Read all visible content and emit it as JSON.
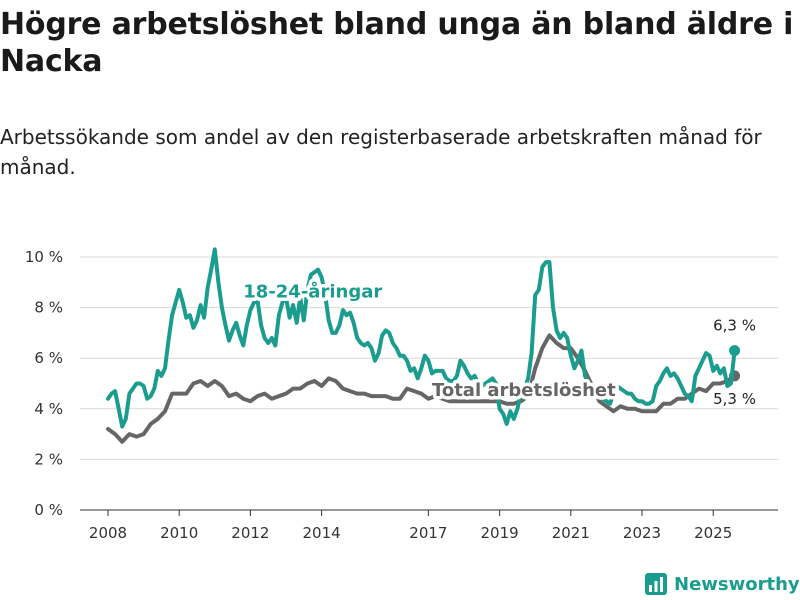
{
  "title": "Högre arbetslöshet bland unga än bland äldre i Nacka",
  "subtitle": "Arbetssökande som andel av den registerbaserade arbetskraften månad för månad.",
  "brand": {
    "name": "Newsworthy",
    "icon": "bar-chart-logo-icon",
    "color": "#1a9d8f"
  },
  "chart_data": {
    "type": "line",
    "title": "Högre arbetslöshet bland unga än bland äldre i Nacka",
    "subtitle": "Arbetssökande som andel av den registerbaserade arbetskraften månad för månad.",
    "xlabel": "",
    "ylabel": "",
    "xlim": [
      2007.6,
      2026.0
    ],
    "ylim": [
      0,
      10
    ],
    "x_ticks": [
      2008,
      2010,
      2012,
      2014,
      2017,
      2019,
      2021,
      2023,
      2025
    ],
    "x_tick_labels": [
      "2008",
      "2010",
      "2012",
      "2014",
      "2017",
      "2019",
      "2021",
      "2023",
      "2025"
    ],
    "y_ticks": [
      0,
      2,
      4,
      6,
      8,
      10
    ],
    "y_tick_labels": [
      "0 %",
      "2 %",
      "4 %",
      "6 %",
      "8 %",
      "10 %"
    ],
    "grid": true,
    "series": [
      {
        "name": "18-24-åringar",
        "color": "#1a9d8f",
        "end_label": "6,3 %",
        "points": [
          [
            2008.0,
            4.4
          ],
          [
            2008.1,
            4.6
          ],
          [
            2008.2,
            4.7
          ],
          [
            2008.3,
            4.0
          ],
          [
            2008.4,
            3.3
          ],
          [
            2008.5,
            3.6
          ],
          [
            2008.6,
            4.6
          ],
          [
            2008.7,
            4.8
          ],
          [
            2008.8,
            5.0
          ],
          [
            2008.9,
            5.0
          ],
          [
            2009.0,
            4.9
          ],
          [
            2009.1,
            4.4
          ],
          [
            2009.2,
            4.5
          ],
          [
            2009.3,
            4.8
          ],
          [
            2009.4,
            5.5
          ],
          [
            2009.5,
            5.3
          ],
          [
            2009.6,
            5.6
          ],
          [
            2009.7,
            6.7
          ],
          [
            2009.8,
            7.7
          ],
          [
            2009.9,
            8.2
          ],
          [
            2010.0,
            8.7
          ],
          [
            2010.1,
            8.2
          ],
          [
            2010.2,
            7.6
          ],
          [
            2010.3,
            7.7
          ],
          [
            2010.4,
            7.2
          ],
          [
            2010.5,
            7.5
          ],
          [
            2010.6,
            8.1
          ],
          [
            2010.7,
            7.6
          ],
          [
            2010.8,
            8.8
          ],
          [
            2010.9,
            9.5
          ],
          [
            2011.0,
            10.3
          ],
          [
            2011.1,
            9.0
          ],
          [
            2011.2,
            8.0
          ],
          [
            2011.3,
            7.3
          ],
          [
            2011.4,
            6.7
          ],
          [
            2011.5,
            7.1
          ],
          [
            2011.6,
            7.4
          ],
          [
            2011.7,
            6.9
          ],
          [
            2011.8,
            6.5
          ],
          [
            2011.9,
            7.3
          ],
          [
            2012.0,
            7.9
          ],
          [
            2012.1,
            8.2
          ],
          [
            2012.2,
            8.3
          ],
          [
            2012.3,
            7.3
          ],
          [
            2012.4,
            6.8
          ],
          [
            2012.5,
            6.6
          ],
          [
            2012.6,
            6.8
          ],
          [
            2012.7,
            6.5
          ],
          [
            2012.8,
            7.7
          ],
          [
            2012.9,
            8.2
          ],
          [
            2013.0,
            8.4
          ],
          [
            2013.1,
            7.6
          ],
          [
            2013.2,
            8.1
          ],
          [
            2013.3,
            7.4
          ],
          [
            2013.4,
            8.4
          ],
          [
            2013.5,
            7.5
          ],
          [
            2013.6,
            8.7
          ],
          [
            2013.7,
            9.3
          ],
          [
            2013.8,
            9.4
          ],
          [
            2013.9,
            9.5
          ],
          [
            2014.0,
            9.2
          ],
          [
            2014.1,
            8.5
          ],
          [
            2014.2,
            7.5
          ],
          [
            2014.3,
            7.0
          ],
          [
            2014.4,
            7.0
          ],
          [
            2014.5,
            7.3
          ],
          [
            2014.6,
            7.9
          ],
          [
            2014.7,
            7.7
          ],
          [
            2014.8,
            7.8
          ],
          [
            2014.9,
            7.4
          ],
          [
            2015.0,
            6.8
          ],
          [
            2015.1,
            6.6
          ],
          [
            2015.2,
            6.5
          ],
          [
            2015.3,
            6.6
          ],
          [
            2015.4,
            6.4
          ],
          [
            2015.5,
            5.9
          ],
          [
            2015.6,
            6.2
          ],
          [
            2015.7,
            6.9
          ],
          [
            2015.8,
            7.1
          ],
          [
            2015.9,
            7.0
          ],
          [
            2016.0,
            6.6
          ],
          [
            2016.1,
            6.4
          ],
          [
            2016.2,
            6.1
          ],
          [
            2016.3,
            6.1
          ],
          [
            2016.4,
            5.9
          ],
          [
            2016.5,
            5.5
          ],
          [
            2016.6,
            5.6
          ],
          [
            2016.7,
            5.2
          ],
          [
            2016.8,
            5.6
          ],
          [
            2016.9,
            6.1
          ],
          [
            2017.0,
            5.9
          ],
          [
            2017.1,
            5.4
          ],
          [
            2017.2,
            5.5
          ],
          [
            2017.3,
            5.5
          ],
          [
            2017.4,
            5.5
          ],
          [
            2017.5,
            5.2
          ],
          [
            2017.6,
            5.1
          ],
          [
            2017.7,
            5.1
          ],
          [
            2017.8,
            5.3
          ],
          [
            2017.9,
            5.9
          ],
          [
            2018.0,
            5.7
          ],
          [
            2018.1,
            5.4
          ],
          [
            2018.2,
            5.2
          ],
          [
            2018.3,
            5.3
          ],
          [
            2018.4,
            5.0
          ],
          [
            2018.5,
            4.9
          ],
          [
            2018.6,
            5.0
          ],
          [
            2018.7,
            5.1
          ],
          [
            2018.8,
            5.2
          ],
          [
            2018.9,
            5.0
          ],
          [
            2019.0,
            4.0
          ],
          [
            2019.1,
            3.8
          ],
          [
            2019.2,
            3.4
          ],
          [
            2019.3,
            3.9
          ],
          [
            2019.4,
            3.6
          ],
          [
            2019.5,
            4.0
          ],
          [
            2019.6,
            4.6
          ],
          [
            2019.7,
            4.8
          ],
          [
            2019.8,
            5.2
          ],
          [
            2019.9,
            6.2
          ],
          [
            2020.0,
            8.5
          ],
          [
            2020.1,
            8.7
          ],
          [
            2020.2,
            9.6
          ],
          [
            2020.3,
            9.8
          ],
          [
            2020.4,
            9.8
          ],
          [
            2020.5,
            8.0
          ],
          [
            2020.6,
            7.1
          ],
          [
            2020.7,
            6.8
          ],
          [
            2020.8,
            7.0
          ],
          [
            2020.9,
            6.8
          ],
          [
            2021.0,
            6.1
          ],
          [
            2021.1,
            5.6
          ],
          [
            2021.2,
            5.9
          ],
          [
            2021.3,
            6.3
          ],
          [
            2021.4,
            5.3
          ],
          [
            2021.5,
            5.0
          ],
          [
            2021.6,
            4.8
          ],
          [
            2021.7,
            4.7
          ],
          [
            2021.8,
            4.6
          ],
          [
            2021.9,
            4.4
          ],
          [
            2022.0,
            4.3
          ],
          [
            2022.1,
            4.2
          ],
          [
            2022.2,
            4.6
          ],
          [
            2022.3,
            4.9
          ],
          [
            2022.4,
            4.8
          ],
          [
            2022.5,
            4.7
          ],
          [
            2022.6,
            4.6
          ],
          [
            2022.7,
            4.6
          ],
          [
            2022.8,
            4.4
          ],
          [
            2022.9,
            4.3
          ],
          [
            2023.0,
            4.3
          ],
          [
            2023.1,
            4.2
          ],
          [
            2023.2,
            4.2
          ],
          [
            2023.3,
            4.3
          ],
          [
            2023.4,
            4.9
          ],
          [
            2023.5,
            5.1
          ],
          [
            2023.6,
            5.4
          ],
          [
            2023.7,
            5.6
          ],
          [
            2023.8,
            5.3
          ],
          [
            2023.9,
            5.4
          ],
          [
            2024.0,
            5.2
          ],
          [
            2024.1,
            4.9
          ],
          [
            2024.2,
            4.6
          ],
          [
            2024.3,
            4.5
          ],
          [
            2024.4,
            4.3
          ],
          [
            2024.5,
            5.3
          ],
          [
            2024.6,
            5.6
          ],
          [
            2024.7,
            5.9
          ],
          [
            2024.8,
            6.2
          ],
          [
            2024.9,
            6.1
          ],
          [
            2025.0,
            5.5
          ],
          [
            2025.1,
            5.7
          ],
          [
            2025.2,
            5.4
          ],
          [
            2025.3,
            5.6
          ],
          [
            2025.4,
            4.9
          ],
          [
            2025.5,
            5.0
          ],
          [
            2025.6,
            6.3
          ]
        ]
      },
      {
        "name": "Total arbetslöshet",
        "color": "#666666",
        "end_label": "5,3 %",
        "points": [
          [
            2008.0,
            3.2
          ],
          [
            2008.2,
            3.0
          ],
          [
            2008.4,
            2.7
          ],
          [
            2008.6,
            3.0
          ],
          [
            2008.8,
            2.9
          ],
          [
            2009.0,
            3.0
          ],
          [
            2009.2,
            3.4
          ],
          [
            2009.4,
            3.6
          ],
          [
            2009.6,
            3.9
          ],
          [
            2009.8,
            4.6
          ],
          [
            2010.0,
            4.6
          ],
          [
            2010.2,
            4.6
          ],
          [
            2010.4,
            5.0
          ],
          [
            2010.6,
            5.1
          ],
          [
            2010.8,
            4.9
          ],
          [
            2011.0,
            5.1
          ],
          [
            2011.2,
            4.9
          ],
          [
            2011.4,
            4.5
          ],
          [
            2011.6,
            4.6
          ],
          [
            2011.8,
            4.4
          ],
          [
            2012.0,
            4.3
          ],
          [
            2012.2,
            4.5
          ],
          [
            2012.4,
            4.6
          ],
          [
            2012.6,
            4.4
          ],
          [
            2012.8,
            4.5
          ],
          [
            2013.0,
            4.6
          ],
          [
            2013.2,
            4.8
          ],
          [
            2013.4,
            4.8
          ],
          [
            2013.6,
            5.0
          ],
          [
            2013.8,
            5.1
          ],
          [
            2014.0,
            4.9
          ],
          [
            2014.2,
            5.2
          ],
          [
            2014.4,
            5.1
          ],
          [
            2014.6,
            4.8
          ],
          [
            2014.8,
            4.7
          ],
          [
            2015.0,
            4.6
          ],
          [
            2015.2,
            4.6
          ],
          [
            2015.4,
            4.5
          ],
          [
            2015.6,
            4.5
          ],
          [
            2015.8,
            4.5
          ],
          [
            2016.0,
            4.4
          ],
          [
            2016.2,
            4.4
          ],
          [
            2016.4,
            4.8
          ],
          [
            2016.6,
            4.7
          ],
          [
            2016.8,
            4.6
          ],
          [
            2017.0,
            4.4
          ],
          [
            2017.2,
            4.5
          ],
          [
            2017.4,
            4.4
          ],
          [
            2017.6,
            4.3
          ],
          [
            2017.8,
            4.3
          ],
          [
            2018.0,
            4.3
          ],
          [
            2018.2,
            4.3
          ],
          [
            2018.4,
            4.3
          ],
          [
            2018.6,
            4.3
          ],
          [
            2018.8,
            4.3
          ],
          [
            2019.0,
            4.3
          ],
          [
            2019.2,
            4.2
          ],
          [
            2019.4,
            4.2
          ],
          [
            2019.6,
            4.3
          ],
          [
            2019.8,
            4.5
          ],
          [
            2020.0,
            5.6
          ],
          [
            2020.2,
            6.4
          ],
          [
            2020.4,
            6.9
          ],
          [
            2020.6,
            6.6
          ],
          [
            2020.8,
            6.4
          ],
          [
            2021.0,
            6.4
          ],
          [
            2021.2,
            6.0
          ],
          [
            2021.4,
            5.5
          ],
          [
            2021.6,
            4.9
          ],
          [
            2021.8,
            4.3
          ],
          [
            2022.0,
            4.1
          ],
          [
            2022.2,
            3.9
          ],
          [
            2022.4,
            4.1
          ],
          [
            2022.6,
            4.0
          ],
          [
            2022.8,
            4.0
          ],
          [
            2023.0,
            3.9
          ],
          [
            2023.2,
            3.9
          ],
          [
            2023.4,
            3.9
          ],
          [
            2023.6,
            4.2
          ],
          [
            2023.8,
            4.2
          ],
          [
            2024.0,
            4.4
          ],
          [
            2024.2,
            4.4
          ],
          [
            2024.4,
            4.6
          ],
          [
            2024.6,
            4.8
          ],
          [
            2024.8,
            4.7
          ],
          [
            2025.0,
            5.0
          ],
          [
            2025.2,
            5.0
          ],
          [
            2025.4,
            5.1
          ],
          [
            2025.6,
            5.3
          ]
        ]
      }
    ],
    "annotations": [
      {
        "text": "18-24-åringar",
        "series": "18-24-åringar",
        "x": 2011.8,
        "y": 8.4
      },
      {
        "text": "Total arbetslöshet",
        "series": "Total arbetslöshet",
        "x": 2017.1,
        "y": 4.5
      }
    ]
  }
}
